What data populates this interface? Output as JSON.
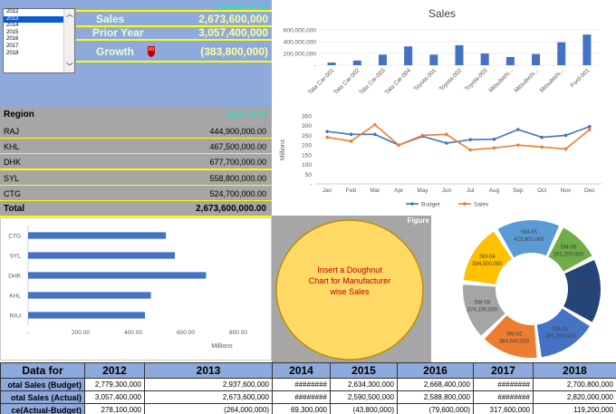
{
  "kpi": {
    "note": "Figures in mi",
    "sales_label": "Sales",
    "sales_value": "2,673,600,000",
    "prior_label": "Prior Year",
    "prior_value": "3,057,400,000",
    "growth_label": "Growth",
    "growth_value": "(383,800,000)",
    "growth_icon": "hand-down-icon",
    "growth_icon_color": "#c00000"
  },
  "year_list": {
    "items": [
      "2012",
      "2013",
      "2014",
      "2015",
      "2016",
      "2017",
      "2018"
    ],
    "selected": "2013"
  },
  "region": {
    "header": "Region",
    "note": "Sales in mi",
    "rows": [
      {
        "name": "RAJ",
        "value": "444,900,000.00"
      },
      {
        "name": "KHL",
        "value": "467,500,000.00"
      },
      {
        "name": "DHK",
        "value": "677,700,000.00"
      },
      {
        "name": "SYL",
        "value": "558,800,000.00"
      },
      {
        "name": "CTG",
        "value": "524,700,000.00"
      }
    ],
    "total_label": "Total",
    "total_value": "2,673,600,000.00"
  },
  "chart_data": [
    {
      "type": "bar",
      "title": "Sales",
      "categories": [
        "Tata Car-001",
        "Tata Car-002",
        "Tata Car-003",
        "Tata Car-004",
        "Toyota-001",
        "Toyota-002",
        "Toyota-003",
        "Mitsubishi...",
        "Mitsubishi...",
        "Mitsubishi...",
        "Ford-001"
      ],
      "values": [
        45000000,
        80000000,
        180000000,
        320000000,
        180000000,
        340000000,
        200000000,
        140000000,
        190000000,
        390000000,
        520000000
      ],
      "yticks": [
        "-",
        "200,000,000",
        "400,000,000",
        "600,000,000"
      ],
      "ylim": [
        0,
        600000000
      ],
      "color": "#4472c4"
    },
    {
      "type": "line",
      "categories": [
        "Jan",
        "Feb",
        "Mar",
        "Apr",
        "May",
        "Jun",
        "Jul",
        "Aug",
        "Sep",
        "Oct",
        "Nov",
        "Dec"
      ],
      "ylabel": "Millions",
      "yticks": [
        "-",
        "50",
        "100",
        "150",
        "200",
        "250",
        "300",
        "350"
      ],
      "ylim": [
        0,
        350
      ],
      "series": [
        {
          "name": "Budget",
          "color": "#4472c4",
          "values": [
            270,
            255,
            255,
            200,
            245,
            210,
            228,
            230,
            280,
            240,
            250,
            295
          ]
        },
        {
          "name": "Sales",
          "color": "#ed7d31",
          "values": [
            240,
            220,
            305,
            200,
            250,
            255,
            175,
            185,
            200,
            190,
            180,
            280
          ]
        }
      ]
    },
    {
      "type": "bar",
      "orientation": "horizontal",
      "categories": [
        "CTG",
        "SYL",
        "DHK",
        "KHL",
        "RAJ"
      ],
      "values": [
        524.7,
        558.8,
        677.7,
        467.5,
        444.9
      ],
      "xticks": [
        "-",
        "200.00",
        "400.00",
        "600.00",
        "800.00"
      ],
      "xlim": [
        0,
        800
      ],
      "xlabel": "Millions",
      "color": "#4472c4"
    },
    {
      "type": "pie",
      "style": "doughnut",
      "labels_visible": [
        {
          "name": "SM-05",
          "value": "423,800,000",
          "color": "#5b9bd5"
        },
        {
          "name": "SM-06",
          "value": "281,200,000",
          "color": "#70ad47"
        },
        {
          "name": "SM-07",
          "value": "",
          "color": "#264478"
        },
        {
          "name": "SM-01",
          "value": "395,700,000",
          "color": "#4472c4"
        },
        {
          "name": "SM-02",
          "value": "384,500,000",
          "color": "#ed7d31"
        },
        {
          "name": "SM-03",
          "value": "374,100,000",
          "color": "#a5a5a5"
        },
        {
          "name": "SM-04",
          "value": "394,500,000",
          "color": "#ffc000"
        }
      ],
      "values": [
        423.8,
        281.2,
        430,
        395.7,
        384.5,
        374.1,
        394.5
      ]
    }
  ],
  "doughnut_panel": {
    "note": "Figure",
    "text": "Insert a Doughnut Chart for Manufacturer wise Sales",
    "text_lines": [
      "Insert a Doughnut",
      "Chart for Manufacturer",
      "wise Sales"
    ]
  },
  "bottom_table": {
    "header_label": "Data for",
    "years": [
      "2012",
      "2013",
      "2014",
      "2015",
      "2016",
      "2017",
      "2018"
    ],
    "rows": [
      {
        "label": "otal Sales (Budget)",
        "values": [
          "2,779,300,000",
          "2,937,600,000",
          "########",
          "2,634,300,000",
          "2,668,400,000",
          "########",
          "2,700,800,000"
        ]
      },
      {
        "label": "otal Sales (Actual)",
        "values": [
          "3,057,400,000",
          "2,673,600,000",
          "########",
          "2,590,500,000",
          "2,588,800,000",
          "########",
          "2,820,000,000"
        ]
      },
      {
        "label": "ce(Actual-Budget)",
        "values": [
          "278,100,000",
          "(264,000,000)",
          "69,300,000",
          "(43,800,000)",
          "(79,600,000)",
          "317,600,000",
          "119,200,000"
        ]
      }
    ]
  }
}
